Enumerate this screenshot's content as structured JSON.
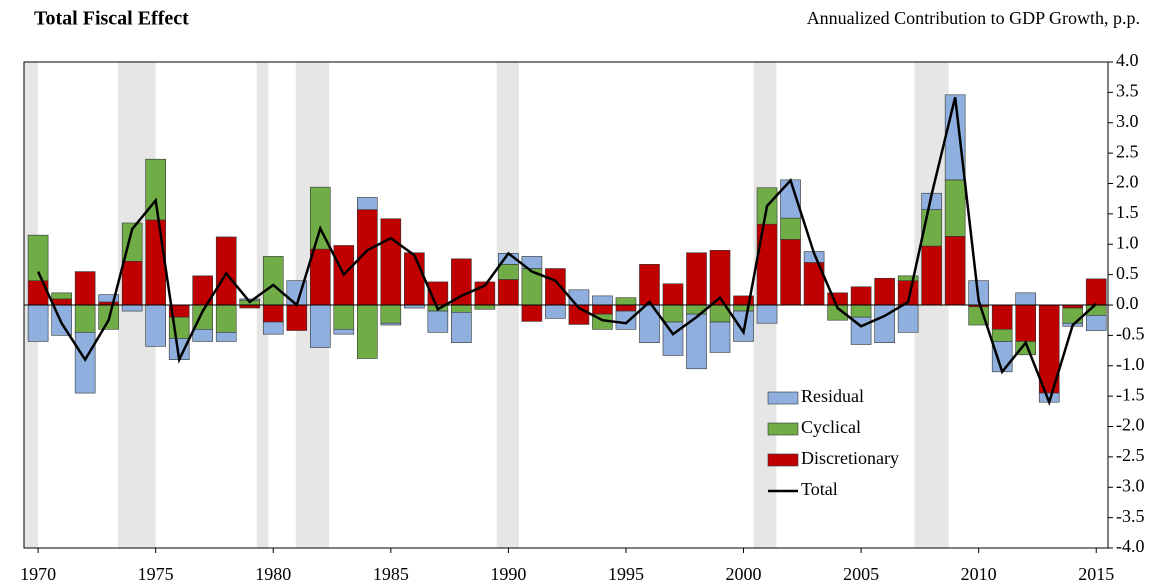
{
  "chart_data": {
    "type": "stacked-bar-line",
    "title": "Total Fiscal Effect",
    "subtitle": "Annualized Contribution to GDP Growth, p.p.",
    "x": [
      1970,
      1971,
      1972,
      1973,
      1974,
      1975,
      1976,
      1977,
      1978,
      1979,
      1980,
      1981,
      1982,
      1983,
      1984,
      1985,
      1986,
      1987,
      1988,
      1989,
      1990,
      1991,
      1992,
      1993,
      1994,
      1995,
      1996,
      1997,
      1998,
      1999,
      2000,
      2001,
      2002,
      2003,
      2004,
      2005,
      2006,
      2007,
      2008,
      2009,
      2010,
      2011,
      2012,
      2013,
      2014,
      2015
    ],
    "series": [
      {
        "name": "Residual",
        "color": "#8fb0de",
        "type": "bar",
        "values": [
          -0.6,
          -0.5,
          -1.0,
          0.12,
          -0.1,
          -0.68,
          -0.35,
          -0.2,
          -0.15,
          0.02,
          -0.2,
          0.4,
          -0.7,
          -0.08,
          0.2,
          -0.03,
          -0.05,
          -0.35,
          -0.5,
          0,
          0.18,
          0.2,
          -0.22,
          0.25,
          0.15,
          -0.3,
          -0.62,
          -0.55,
          -0.9,
          -0.5,
          -0.5,
          -0.3,
          0.63,
          0.18,
          0,
          -0.45,
          -0.62,
          -0.45,
          0.27,
          1.4,
          0.4,
          -0.5,
          0.2,
          -0.15,
          -0.05,
          -0.25
        ]
      },
      {
        "name": "Cyclical",
        "color": "#70ad47",
        "type": "bar",
        "values": [
          0.75,
          0.1,
          -0.45,
          -0.4,
          0.63,
          1.0,
          -0.35,
          -0.4,
          -0.45,
          0.08,
          0.8,
          0,
          1.02,
          -0.4,
          -0.88,
          -0.3,
          0,
          -0.1,
          -0.12,
          -0.07,
          0.25,
          0.6,
          0,
          0,
          -0.25,
          0.12,
          0,
          -0.28,
          -0.15,
          -0.28,
          -0.1,
          0.6,
          0.35,
          0,
          -0.25,
          -0.2,
          0,
          0.08,
          0.6,
          0.93,
          -0.3,
          -0.2,
          -0.22,
          0,
          -0.25,
          -0.17
        ]
      },
      {
        "name": "Discretionary",
        "color": "#c00000",
        "type": "bar",
        "values": [
          0.4,
          0.1,
          0.55,
          0.05,
          0.72,
          1.4,
          -0.2,
          0.48,
          1.12,
          -0.05,
          -0.28,
          -0.42,
          0.92,
          0.98,
          1.57,
          1.42,
          0.86,
          0.38,
          0.76,
          0.38,
          0.42,
          -0.27,
          0.6,
          -0.32,
          -0.15,
          -0.1,
          0.67,
          0.35,
          0.86,
          0.9,
          0.15,
          1.33,
          1.08,
          0.7,
          0.2,
          0.3,
          0.44,
          0.4,
          0.97,
          1.13,
          -0.03,
          -0.4,
          -0.6,
          -1.45,
          -0.05,
          0.43
        ]
      },
      {
        "name": "Total",
        "color": "#000000",
        "type": "line",
        "values": [
          0.55,
          -0.3,
          -0.9,
          -0.25,
          1.25,
          1.72,
          -0.9,
          -0.1,
          0.52,
          0.05,
          0.33,
          0.0,
          1.26,
          0.5,
          0.9,
          1.1,
          0.82,
          -0.07,
          0.15,
          0.32,
          0.85,
          0.55,
          0.4,
          -0.05,
          -0.25,
          -0.3,
          0.05,
          -0.48,
          -0.2,
          0.12,
          -0.45,
          1.63,
          2.05,
          0.85,
          -0.05,
          -0.35,
          -0.18,
          0.05,
          1.82,
          3.42,
          0.07,
          -1.1,
          -0.62,
          -1.6,
          -0.33,
          0.02
        ]
      }
    ],
    "shaded_periods": [
      [
        1969.4,
        1970.0
      ],
      [
        1973.4,
        1975.0
      ],
      [
        1979.3,
        1979.8
      ],
      [
        1980.96,
        1982.37
      ],
      [
        1989.5,
        1990.45
      ],
      [
        2000.43,
        2001.4
      ],
      [
        2007.27,
        2008.72
      ]
    ],
    "shade_color": "#e6e6e6",
    "xlim": [
      1969.4,
      2015.5
    ],
    "xticks": [
      1970,
      1975,
      1980,
      1985,
      1990,
      1995,
      2000,
      2005,
      2010,
      2015
    ],
    "ylim": [
      -4,
      4
    ],
    "yticks": [
      {
        "value": 4,
        "label": "4.0"
      },
      3.5,
      {
        "value": 3,
        "label": "3.0"
      },
      2.5,
      {
        "value": 2,
        "label": "2.0"
      },
      1.5,
      {
        "value": 1,
        "label": "1.0"
      },
      0.5,
      {
        "value": 0,
        "label": "0.0"
      },
      -0.5,
      {
        "value": -1,
        "label": "-1.0"
      },
      -1.5,
      {
        "value": -2,
        "label": "-2.0"
      },
      -2.5,
      {
        "value": -3,
        "label": "-3.0"
      },
      -3.5,
      {
        "value": -4,
        "label": "-4.0"
      }
    ],
    "legend": "lower right"
  }
}
